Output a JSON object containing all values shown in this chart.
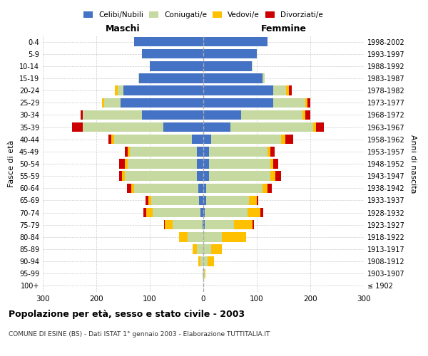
{
  "age_groups": [
    "100+",
    "95-99",
    "90-94",
    "85-89",
    "80-84",
    "75-79",
    "70-74",
    "65-69",
    "60-64",
    "55-59",
    "50-54",
    "45-49",
    "40-44",
    "35-39",
    "30-34",
    "25-29",
    "20-24",
    "15-19",
    "10-14",
    "5-9",
    "0-4"
  ],
  "birth_years": [
    "≤ 1902",
    "1903-1907",
    "1908-1912",
    "1913-1917",
    "1918-1922",
    "1923-1927",
    "1928-1932",
    "1933-1937",
    "1938-1942",
    "1943-1947",
    "1948-1952",
    "1953-1957",
    "1958-1962",
    "1963-1967",
    "1968-1972",
    "1973-1977",
    "1978-1982",
    "1983-1987",
    "1988-1992",
    "1993-1997",
    "1998-2002"
  ],
  "maschi": {
    "celibi": [
      0,
      0,
      0,
      0,
      0,
      2,
      5,
      8,
      10,
      12,
      12,
      12,
      22,
      75,
      115,
      155,
      150,
      120,
      100,
      115,
      130
    ],
    "coniugati": [
      0,
      2,
      5,
      12,
      30,
      55,
      90,
      90,
      120,
      135,
      130,
      125,
      145,
      150,
      110,
      30,
      10,
      2,
      0,
      0,
      0
    ],
    "vedovi": [
      0,
      0,
      5,
      8,
      15,
      15,
      12,
      5,
      5,
      5,
      5,
      5,
      5,
      0,
      0,
      5,
      5,
      0,
      0,
      0,
      0
    ],
    "divorziati": [
      0,
      0,
      0,
      0,
      0,
      2,
      5,
      5,
      8,
      5,
      10,
      5,
      5,
      20,
      5,
      0,
      0,
      0,
      0,
      0,
      0
    ]
  },
  "femmine": {
    "nubili": [
      0,
      0,
      0,
      0,
      0,
      2,
      2,
      5,
      5,
      10,
      10,
      10,
      15,
      50,
      70,
      130,
      130,
      110,
      90,
      100,
      120
    ],
    "coniugate": [
      0,
      2,
      8,
      15,
      35,
      55,
      80,
      80,
      105,
      115,
      115,
      110,
      130,
      155,
      115,
      60,
      25,
      5,
      2,
      0,
      0
    ],
    "vedove": [
      0,
      2,
      12,
      20,
      45,
      35,
      25,
      15,
      10,
      10,
      5,
      5,
      8,
      5,
      5,
      5,
      5,
      0,
      0,
      0,
      0
    ],
    "divorziate": [
      0,
      0,
      0,
      0,
      0,
      2,
      5,
      2,
      8,
      10,
      10,
      8,
      15,
      15,
      10,
      5,
      5,
      0,
      0,
      0,
      0
    ]
  },
  "colors": {
    "celibi": "#4472C4",
    "coniugati": "#c5d9a0",
    "vedovi": "#ffc000",
    "divorziati": "#cc0000"
  },
  "xlim": 300,
  "title": "Popolazione per età, sesso e stato civile - 2003",
  "subtitle": "COMUNE DI ESINE (BS) - Dati ISTAT 1° gennaio 2003 - Elaborazione TUTTITALIA.IT",
  "ylabel_left": "Fasce di età",
  "ylabel_right": "Anni di nascita",
  "xlabel_left": "Maschi",
  "xlabel_right": "Femmine",
  "bg_color": "#ffffff",
  "grid_color": "#cccccc"
}
